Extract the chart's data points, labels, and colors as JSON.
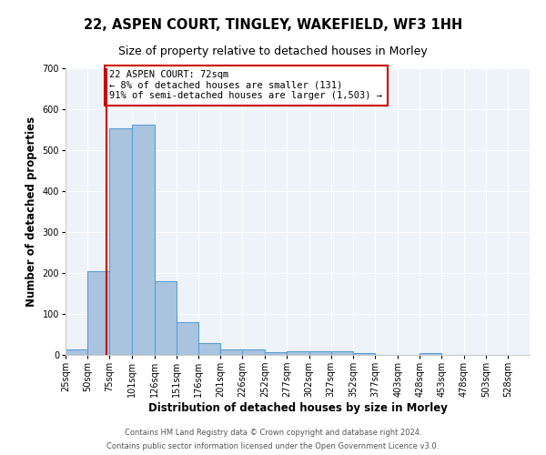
{
  "title": "22, ASPEN COURT, TINGLEY, WAKEFIELD, WF3 1HH",
  "subtitle": "Size of property relative to detached houses in Morley",
  "xlabel": "Distribution of detached houses by size in Morley",
  "ylabel": "Number of detached properties",
  "footnote1": "Contains HM Land Registry data © Crown copyright and database right 2024.",
  "footnote2": "Contains public sector information licensed under the Open Government Licence v3.0.",
  "bar_left_edges": [
    25,
    50,
    75,
    101,
    126,
    151,
    176,
    201,
    226,
    252,
    277,
    302,
    327,
    352,
    377,
    403,
    428,
    453,
    478,
    503
  ],
  "bar_widths": [
    25,
    25,
    26,
    25,
    25,
    25,
    25,
    25,
    26,
    25,
    25,
    25,
    25,
    25,
    26,
    25,
    25,
    25,
    25,
    25
  ],
  "bar_heights": [
    13,
    204,
    553,
    563,
    180,
    79,
    30,
    14,
    13,
    6,
    10,
    10,
    8,
    5,
    0,
    0,
    5,
    0,
    0,
    0
  ],
  "xtick_labels": [
    "25sqm",
    "50sqm",
    "75sqm",
    "101sqm",
    "126sqm",
    "151sqm",
    "176sqm",
    "201sqm",
    "226sqm",
    "252sqm",
    "277sqm",
    "302sqm",
    "327sqm",
    "352sqm",
    "377sqm",
    "403sqm",
    "428sqm",
    "453sqm",
    "478sqm",
    "503sqm",
    "528sqm"
  ],
  "xtick_positions": [
    25,
    50,
    75,
    101,
    126,
    151,
    176,
    201,
    226,
    252,
    277,
    302,
    327,
    352,
    377,
    403,
    428,
    453,
    478,
    503,
    528
  ],
  "ylim": [
    0,
    700
  ],
  "yticks": [
    0,
    100,
    200,
    300,
    400,
    500,
    600,
    700
  ],
  "bar_color": "#aac4e0",
  "bar_edge_color": "#5a9fd4",
  "bg_color": "#eef3fa",
  "grid_color": "#ffffff",
  "property_line_x": 72,
  "property_line_color": "#cc0000",
  "annotation_text": "22 ASPEN COURT: 72sqm\n← 8% of detached houses are smaller (131)\n91% of semi-detached houses are larger (1,503) →",
  "annotation_box_color": "#ffffff",
  "annotation_box_edge": "#cc0000",
  "title_fontsize": 10.5,
  "subtitle_fontsize": 9,
  "axis_label_fontsize": 8.5,
  "tick_fontsize": 7,
  "annotation_fontsize": 7.5,
  "footnote_fontsize": 6
}
